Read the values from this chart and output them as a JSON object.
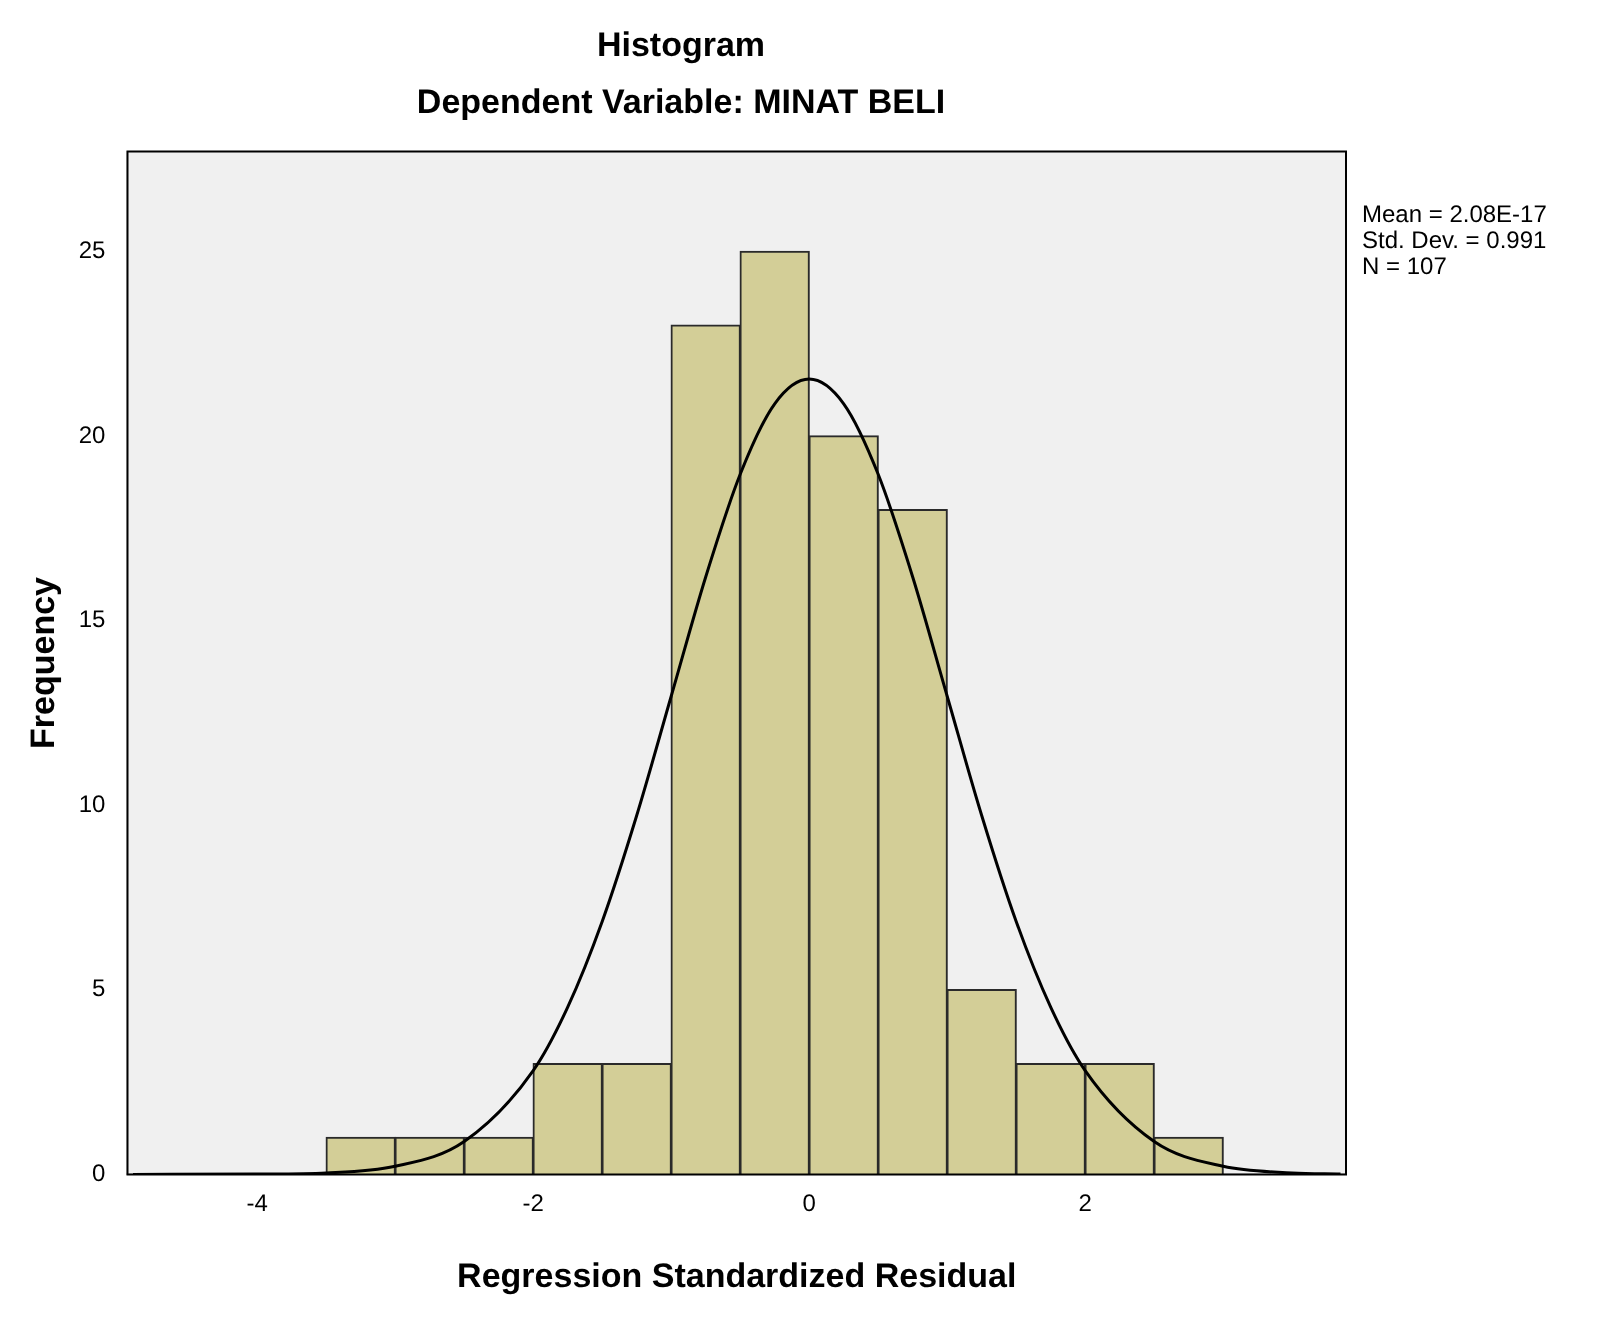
{
  "chart_data": {
    "type": "histogram",
    "title": "Histogram",
    "subtitle": "Dependent Variable: MINAT BELI",
    "xlabel": "Regression Standardized Residual",
    "ylabel": "Frequency",
    "bins": [
      -3.5,
      -3,
      -2.5,
      -2,
      -1.5,
      -1,
      -0.5,
      0,
      0.5,
      1,
      1.5,
      2,
      2.5,
      3
    ],
    "values": [
      1,
      1,
      1,
      3,
      3,
      23,
      25,
      20,
      18,
      5,
      3,
      3,
      1
    ],
    "color": "#d3ce97",
    "series": [
      {
        "type": "line",
        "color": "#000000",
        "x": [
          -4.9,
          -4,
          -3.5,
          -3,
          -2.5,
          -2,
          -1.75,
          -1.5,
          -1.25,
          -1,
          -0.75,
          -0.5,
          -0.25,
          0,
          0.25,
          0.5,
          0.75,
          1,
          1.25,
          1.5,
          1.75,
          2,
          2.5,
          3,
          3.5,
          3.85
        ],
        "values": [
          0,
          0.01,
          0.04,
          0.22,
          0.89,
          2.81,
          4.53,
          6.85,
          9.72,
          12.95,
          16.18,
          18.96,
          20.87,
          21.54,
          20.87,
          18.96,
          16.18,
          12.95,
          9.72,
          6.85,
          4.53,
          2.81,
          0.89,
          0.22,
          0.04,
          0.01
        ]
      }
    ],
    "xlim": [
      -4.94,
      3.89
    ],
    "ylim": [
      0,
      27.7
    ],
    "xticks": [
      -4,
      -2,
      0,
      2
    ],
    "yticks": [
      0,
      5,
      10,
      15,
      20,
      25
    ],
    "grid": false,
    "legend": false,
    "marker": "none",
    "annotations": [
      "Mean = 2.08E-17",
      "Std. Dev. = 0.991",
      "N = 107"
    ]
  }
}
